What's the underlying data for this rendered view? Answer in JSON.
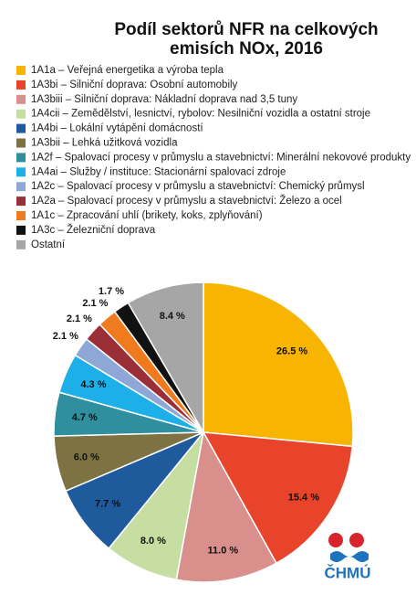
{
  "chart_data": {
    "type": "pie",
    "title": "Podíl sektorů NFR na celkových emisích NOx, 2016",
    "categories": [
      "1A1a – Veřejná energetika a výroba tepla",
      "1A3bi – Silniční doprava: Osobní automobily",
      "1A3biii – Silniční doprava: Nákladní doprava nad 3,5 tuny",
      "1A4cii – Zemědělství, lesnictví, rybolov: Nesilniční vozidla a ostatní stroje",
      "1A4bi – Lokální vytápění domácností",
      "1A3bii – Lehká užitková vozidla",
      "1A2f – Spalovací procesy v průmyslu a stavebnictví: Minerální nekovové produkty",
      "1A4ai – Služby / instituce: Stacionární spalovací zdroje",
      "1A2c – Spalovací procesy v průmyslu a stavebnictví: Chemický průmysl",
      "1A2a – Spalovací procesy v průmyslu a stavebnictví: Železo a ocel",
      "1A1c – Zpracování uhlí (brikety, koks, zplyňování)",
      "1A3c – Železniční doprava",
      "Ostatní"
    ],
    "values": [
      26.5,
      15.4,
      11.0,
      8.0,
      7.7,
      6.0,
      4.7,
      4.3,
      2.1,
      2.1,
      2.1,
      1.7,
      8.4
    ],
    "value_labels": [
      "26.5 %",
      "15.4 %",
      "11.0 %",
      "8.0 %",
      "7.7 %",
      "6.0 %",
      "4.7 %",
      "4.3 %",
      "2.1 %",
      "2.1 %",
      "2.1 %",
      "1.7 %",
      "8.4 %"
    ],
    "colors": [
      "#f7b400",
      "#e8432b",
      "#d98f8c",
      "#c6dea1",
      "#1f5a9c",
      "#7d7342",
      "#2f8f9f",
      "#1db0e8",
      "#8fa7d6",
      "#9b2f37",
      "#ef7b1e",
      "#111111",
      "#a6a6a6"
    ],
    "legend": "top-left"
  },
  "logo_text": "ČHMÚ"
}
